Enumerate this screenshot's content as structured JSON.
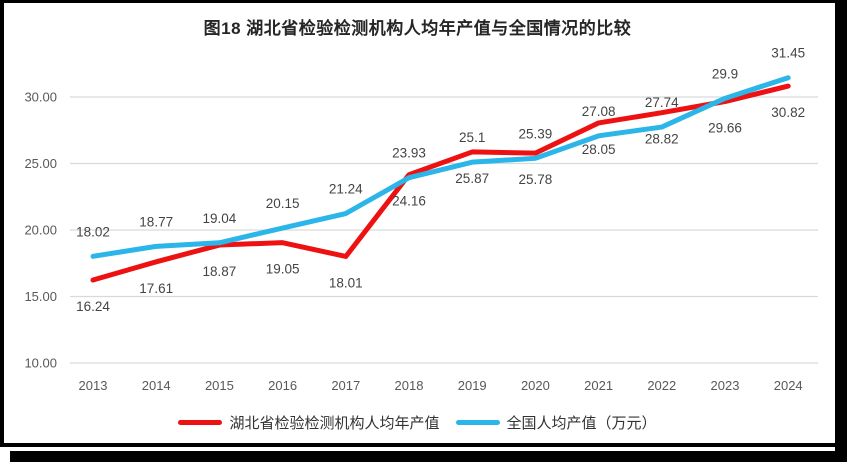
{
  "chart_data": {
    "type": "line",
    "title": "图18 湖北省检验检测机构人均年产值与全国情况的比较",
    "categories": [
      "2013",
      "2014",
      "2015",
      "2016",
      "2017",
      "2018",
      "2019",
      "2020",
      "2021",
      "2022",
      "2023",
      "2024"
    ],
    "series": [
      {
        "name": "湖北省检验检测机构人均年产值",
        "color": "#ee1111",
        "values": [
          16.24,
          17.61,
          18.87,
          19.05,
          18.01,
          24.16,
          25.87,
          25.78,
          28.05,
          28.82,
          29.66,
          30.82
        ],
        "data_label_position": "below"
      },
      {
        "name": "全国人均产值（万元）",
        "color": "#2bb5e9",
        "values": [
          18.02,
          18.77,
          19.04,
          20.15,
          21.24,
          23.93,
          25.1,
          25.39,
          27.08,
          27.74,
          29.9,
          31.45
        ],
        "data_label_position": "above"
      }
    ],
    "y_axis": {
      "tick_labels": [
        "30.00",
        "25.00",
        "20.00",
        "15.00",
        "10.00"
      ],
      "min": 10,
      "max": 30,
      "step": 5
    },
    "x_axis": {
      "label_rotation": 0
    },
    "grid": "horizontal",
    "legend_position": "bottom",
    "colors": {
      "gridline": "#d9d9d9",
      "axis_text": "#595959",
      "data_label_text": "#444444",
      "title_text": "#262626",
      "frame": "#000000",
      "background": "#ffffff"
    }
  }
}
